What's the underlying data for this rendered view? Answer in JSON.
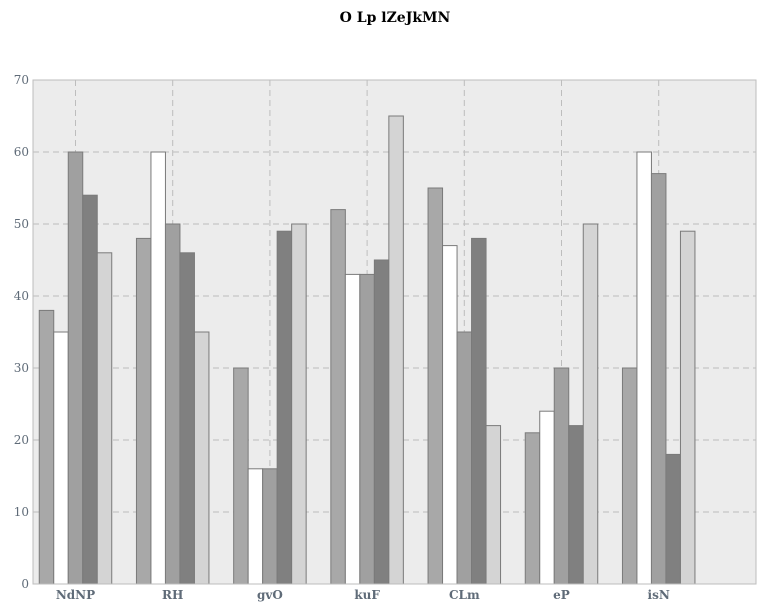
{
  "chart_data": {
    "type": "bar",
    "title": "O Lp lZeJkMN",
    "xlabel": "",
    "ylabel": "",
    "categories": [
      "NdNP",
      "RH",
      "gvO",
      "kuF",
      "CLm",
      "eP",
      "isN"
    ],
    "ylim": [
      0,
      70
    ],
    "yticks": [
      0,
      10,
      20,
      30,
      40,
      50,
      60,
      70
    ],
    "grid": true,
    "legend": "none",
    "series": [
      {
        "color": "#a8a8a8",
        "values": [
          38,
          48,
          30,
          52,
          55,
          21,
          30
        ]
      },
      {
        "color": "#ffffff",
        "values": [
          35,
          60,
          16,
          43,
          47,
          24,
          60
        ]
      },
      {
        "color": "#a0a0a0",
        "values": [
          60,
          50,
          16,
          43,
          35,
          30,
          57
        ]
      },
      {
        "color": "#808080",
        "values": [
          54,
          46,
          49,
          45,
          48,
          22,
          18
        ]
      },
      {
        "color": "#d4d4d4",
        "values": [
          46,
          35,
          50,
          65,
          22,
          50,
          49
        ]
      }
    ],
    "colors": {
      "plot_background": "#ececec",
      "grid": "#bdbdbd",
      "bar_edge": "#7a7a7a",
      "tick_text": "#5f6b78"
    }
  }
}
